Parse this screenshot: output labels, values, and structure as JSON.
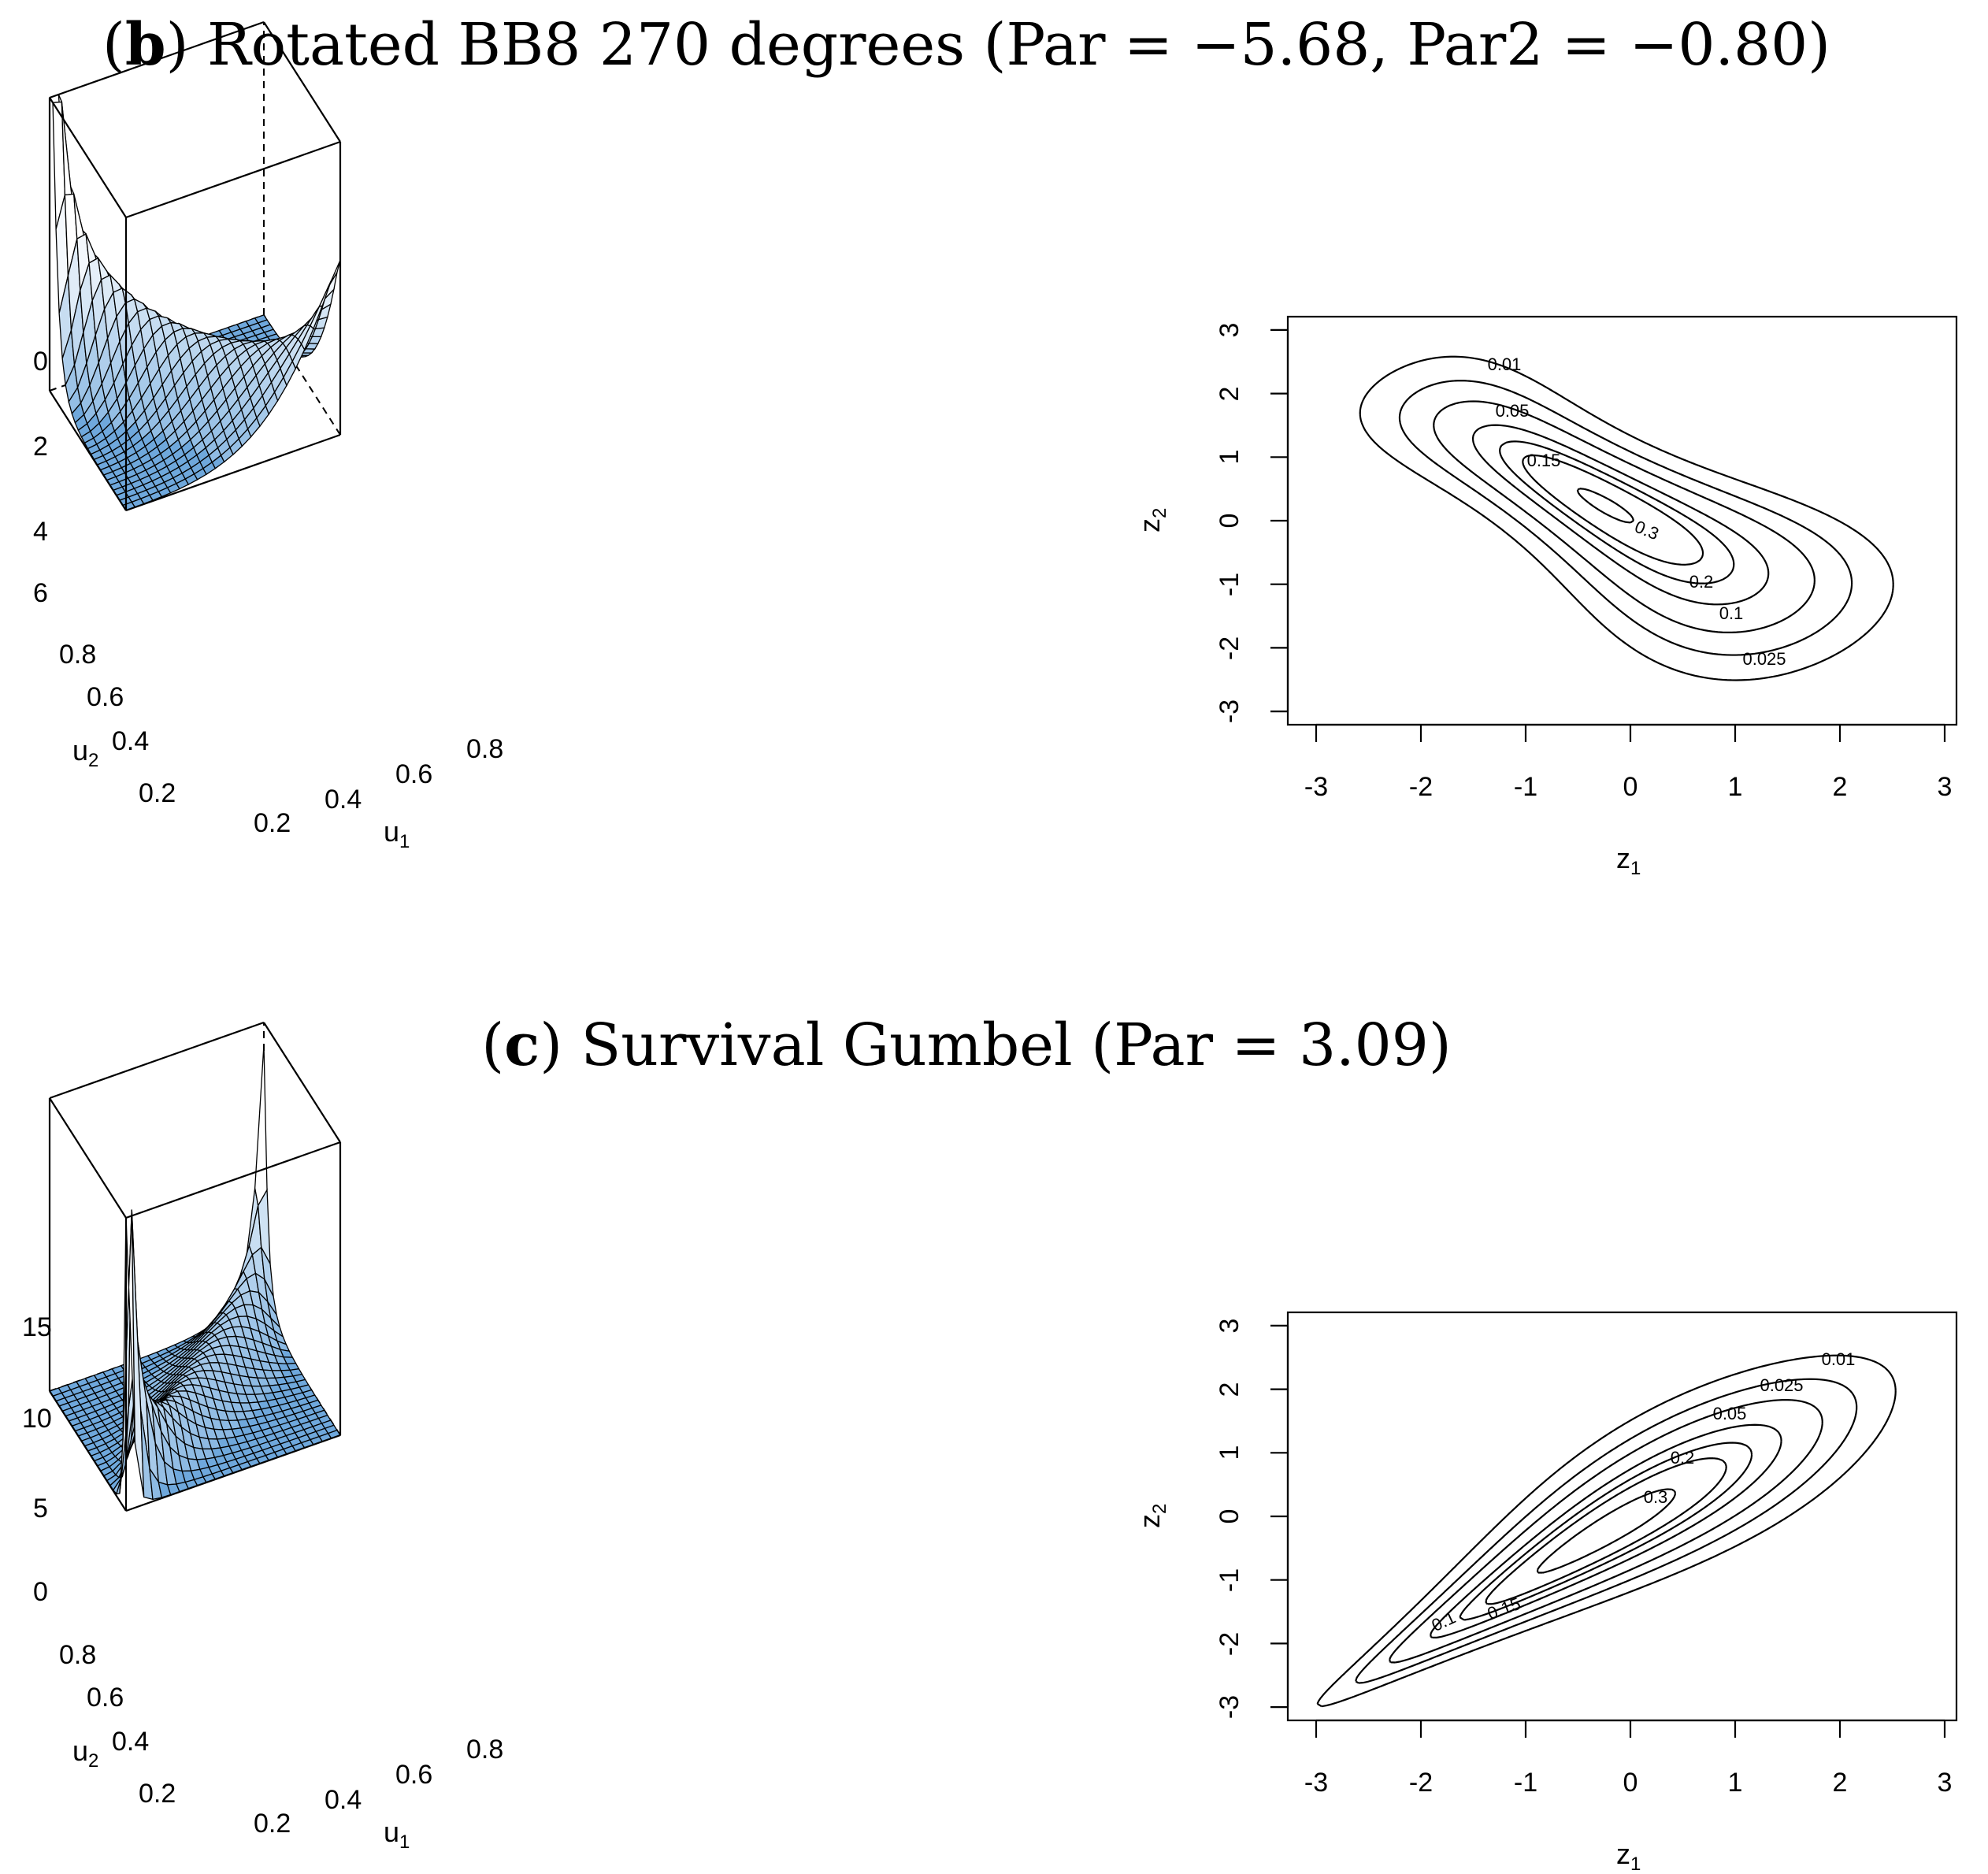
{
  "panels": [
    {
      "title_label": "b",
      "title_text": ") Rotated BB8 270 degrees (Par = −5.68, Par2 = −0.80)",
      "surface": {
        "z_ticks": [
          "0",
          "2",
          "4",
          "6"
        ],
        "z_values": [
          0,
          2,
          4,
          6
        ],
        "z_max": 7,
        "u2_ticks": [
          "0.2",
          "0.4",
          "0.6",
          "0.8"
        ],
        "u1_ticks": [
          "0.2",
          "0.4",
          "0.6",
          "0.8"
        ],
        "u1_label": "u",
        "u1_sub": "1",
        "u2_label": "u",
        "u2_sub": "2",
        "fill_color": "#6fa8dc"
      },
      "contour": {
        "x_ticks": [
          "-3",
          "-2",
          "-1",
          "0",
          "1",
          "2",
          "3"
        ],
        "y_ticks": [
          "-3",
          "-2",
          "-1",
          "0",
          "1",
          "2",
          "3"
        ],
        "xlabel": "z",
        "xlabel_sub": "1",
        "ylabel": "z",
        "ylabel_sub": "2",
        "levels": [
          "0.01",
          "0.025",
          "0.05",
          "0.1",
          "0.15",
          "0.2",
          "0.3"
        ]
      }
    },
    {
      "title_label": "c",
      "title_text": ") Survival Gumbel (Par = 3.09)",
      "surface": {
        "z_ticks": [
          "0",
          "5",
          "10",
          "15"
        ],
        "z_values": [
          0,
          5,
          10,
          15
        ],
        "z_max": 16,
        "u2_ticks": [
          "0.2",
          "0.4",
          "0.6",
          "0.8"
        ],
        "u1_ticks": [
          "0.2",
          "0.4",
          "0.6",
          "0.8"
        ],
        "u1_label": "u",
        "u1_sub": "1",
        "u2_label": "u",
        "u2_sub": "2",
        "fill_color": "#6fa8dc"
      },
      "contour": {
        "x_ticks": [
          "-3",
          "-2",
          "-1",
          "0",
          "1",
          "2",
          "3"
        ],
        "y_ticks": [
          "-3",
          "-2",
          "-1",
          "0",
          "1",
          "2",
          "3"
        ],
        "xlabel": "z",
        "xlabel_sub": "1",
        "ylabel": "z",
        "ylabel_sub": "2",
        "levels": [
          "0.01",
          "0.025",
          "0.05",
          "0.1",
          "0.15",
          "0.2",
          "0.3"
        ]
      }
    }
  ],
  "chart_data": [
    {
      "type": "surface",
      "title": "(b) Rotated BB8 270 degrees (Par = −5.68, Par2 = −0.80)",
      "xlabel": "u1",
      "ylabel": "u2",
      "xlim": [
        0,
        1
      ],
      "ylim": [
        0,
        1
      ],
      "zlim": [
        0,
        7
      ],
      "copula": {
        "family": "rotated-bb8-270",
        "par": -5.68,
        "par2": -0.8
      }
    },
    {
      "type": "contour",
      "title": "(b) Rotated BB8 270 degrees (Par = −5.68, Par2 = −0.80)",
      "xlabel": "z1",
      "ylabel": "z2",
      "xlim": [
        -3,
        3
      ],
      "ylim": [
        -3,
        3
      ],
      "levels": [
        0.01,
        0.025,
        0.05,
        0.1,
        0.15,
        0.2,
        0.3
      ],
      "copula": {
        "family": "rotated-bb8-270",
        "par": -5.68,
        "par2": -0.8
      }
    },
    {
      "type": "surface",
      "title": "(c) Survival Gumbel (Par = 3.09)",
      "xlabel": "u1",
      "ylabel": "u2",
      "xlim": [
        0,
        1
      ],
      "ylim": [
        0,
        1
      ],
      "zlim": [
        0,
        16
      ],
      "copula": {
        "family": "survival-gumbel",
        "par": 3.09
      }
    },
    {
      "type": "contour",
      "title": "(c) Survival Gumbel (Par = 3.09)",
      "xlabel": "z1",
      "ylabel": "z2",
      "xlim": [
        -3,
        3
      ],
      "ylim": [
        -3,
        3
      ],
      "levels": [
        0.01,
        0.025,
        0.05,
        0.1,
        0.15,
        0.2,
        0.3
      ],
      "copula": {
        "family": "survival-gumbel",
        "par": 3.09
      }
    }
  ]
}
